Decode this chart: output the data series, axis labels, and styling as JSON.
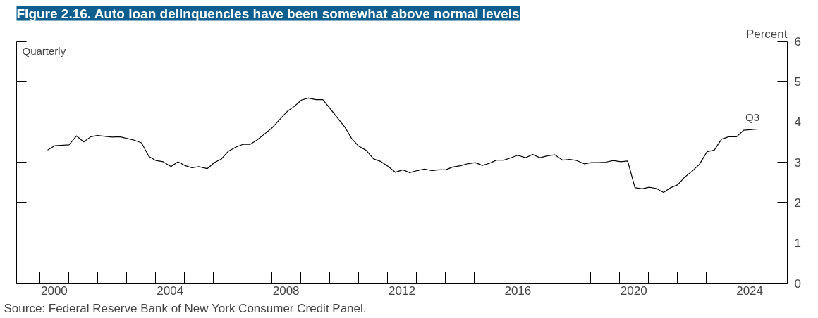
{
  "chart_data": {
    "type": "line",
    "title": "Figure 2.16. Auto loan delinquencies have been somewhat above normal levels",
    "ylabel": "Percent",
    "x": [
      2000.27,
      2000.53,
      2001.01,
      2001.27,
      2001.52,
      2001.76,
      2001.99,
      2002.5,
      2002.76,
      2003.24,
      2003.51,
      2003.77,
      2004.01,
      2004.26,
      2004.53,
      2004.77,
      2005.0,
      2005.25,
      2005.49,
      2005.78,
      2006.03,
      2006.27,
      2006.51,
      2006.76,
      2007.01,
      2007.26,
      2007.5,
      2007.76,
      2008.03,
      2008.27,
      2008.56,
      2008.78,
      2009.03,
      2009.27,
      2009.53,
      2009.77,
      2010.02,
      2010.26,
      2010.52,
      2010.76,
      2011.0,
      2011.27,
      2011.52,
      2011.76,
      2012.03,
      2012.27,
      2012.53,
      2012.77,
      2013.02,
      2013.28,
      2013.52,
      2013.76,
      2014.01,
      2014.25,
      2014.52,
      2014.76,
      2015.03,
      2015.27,
      2015.51,
      2015.76,
      2016.02,
      2016.26,
      2016.5,
      2016.76,
      2017.01,
      2017.27,
      2017.53,
      2017.78,
      2018.05,
      2018.29,
      2018.53,
      2018.79,
      2019.03,
      2019.3,
      2019.54,
      2019.79,
      2020.05,
      2020.29,
      2020.54,
      2020.79,
      2021.03,
      2021.27,
      2021.53,
      2021.78,
      2022.02,
      2022.26,
      2022.52,
      2022.77,
      2023.03,
      2023.28,
      2023.53,
      2023.78,
      2024.05,
      2024.29,
      2024.79
    ],
    "series": [
      {
        "color": "#000000",
        "values": [
          3.3,
          3.41,
          3.43,
          3.65,
          3.5,
          3.63,
          3.66,
          3.62,
          3.63,
          3.55,
          3.48,
          3.14,
          3.04,
          3.01,
          2.89,
          3.01,
          2.92,
          2.86,
          2.89,
          2.84,
          2.99,
          3.08,
          3.27,
          3.37,
          3.44,
          3.44,
          3.55,
          3.7,
          3.86,
          4.05,
          4.27,
          4.38,
          4.54,
          4.59,
          4.55,
          4.55,
          4.33,
          4.11,
          3.88,
          3.59,
          3.4,
          3.29,
          3.08,
          3.02,
          2.89,
          2.75,
          2.81,
          2.74,
          2.79,
          2.83,
          2.79,
          2.81,
          2.81,
          2.88,
          2.91,
          2.96,
          2.99,
          2.92,
          2.97,
          3.05,
          3.05,
          3.11,
          3.17,
          3.11,
          3.19,
          3.11,
          3.16,
          3.18,
          3.05,
          3.07,
          3.04,
          2.96,
          2.99,
          2.99,
          3.0,
          3.04,
          3.01,
          3.03,
          2.37,
          2.34,
          2.38,
          2.35,
          2.25,
          2.37,
          2.44,
          2.63,
          2.78,
          2.95,
          3.26,
          3.3,
          3.57,
          3.63,
          3.63,
          3.79,
          3.82
        ]
      }
    ],
    "xlim": [
      1999.2,
      2025.8
    ],
    "xticks": [
      {
        "value": 2000,
        "label": null
      },
      {
        "value": 2000.5,
        "label": "2000"
      },
      {
        "value": 2001,
        "label": null
      },
      {
        "value": 2002,
        "label": null
      },
      {
        "value": 2003,
        "label": null
      },
      {
        "value": 2004,
        "label": null
      },
      {
        "value": 2004.5,
        "label": "2004"
      },
      {
        "value": 2005,
        "label": null
      },
      {
        "value": 2006,
        "label": null
      },
      {
        "value": 2007,
        "label": null
      },
      {
        "value": 2008,
        "label": null
      },
      {
        "value": 2008.5,
        "label": "2008"
      },
      {
        "value": 2009,
        "label": null
      },
      {
        "value": 2010,
        "label": null
      },
      {
        "value": 2011,
        "label": null
      },
      {
        "value": 2012,
        "label": null
      },
      {
        "value": 2012.5,
        "label": "2012"
      },
      {
        "value": 2013,
        "label": null
      },
      {
        "value": 2014,
        "label": null
      },
      {
        "value": 2015,
        "label": null
      },
      {
        "value": 2016,
        "label": null
      },
      {
        "value": 2016.5,
        "label": "2016"
      },
      {
        "value": 2017,
        "label": null
      },
      {
        "value": 2018,
        "label": null
      },
      {
        "value": 2019,
        "label": null
      },
      {
        "value": 2020,
        "label": null
      },
      {
        "value": 2020.5,
        "label": "2020"
      },
      {
        "value": 2021,
        "label": null
      },
      {
        "value": 2022,
        "label": null
      },
      {
        "value": 2023,
        "label": null
      },
      {
        "value": 2024,
        "label": null
      },
      {
        "value": 2024.5,
        "label": "2024"
      },
      {
        "value": 2025,
        "label": null
      }
    ],
    "ylim": [
      0,
      6
    ],
    "yticks": [
      0,
      1,
      2,
      3,
      4,
      5,
      6
    ],
    "grid": false,
    "line_style": "solid",
    "annotations": [
      "Quarterly",
      {
        "text": "Q3",
        "x": 2024.79,
        "y": 3.82
      },
      "Source: Federal Reserve Bank of New York Consumer Credit Panel."
    ]
  }
}
